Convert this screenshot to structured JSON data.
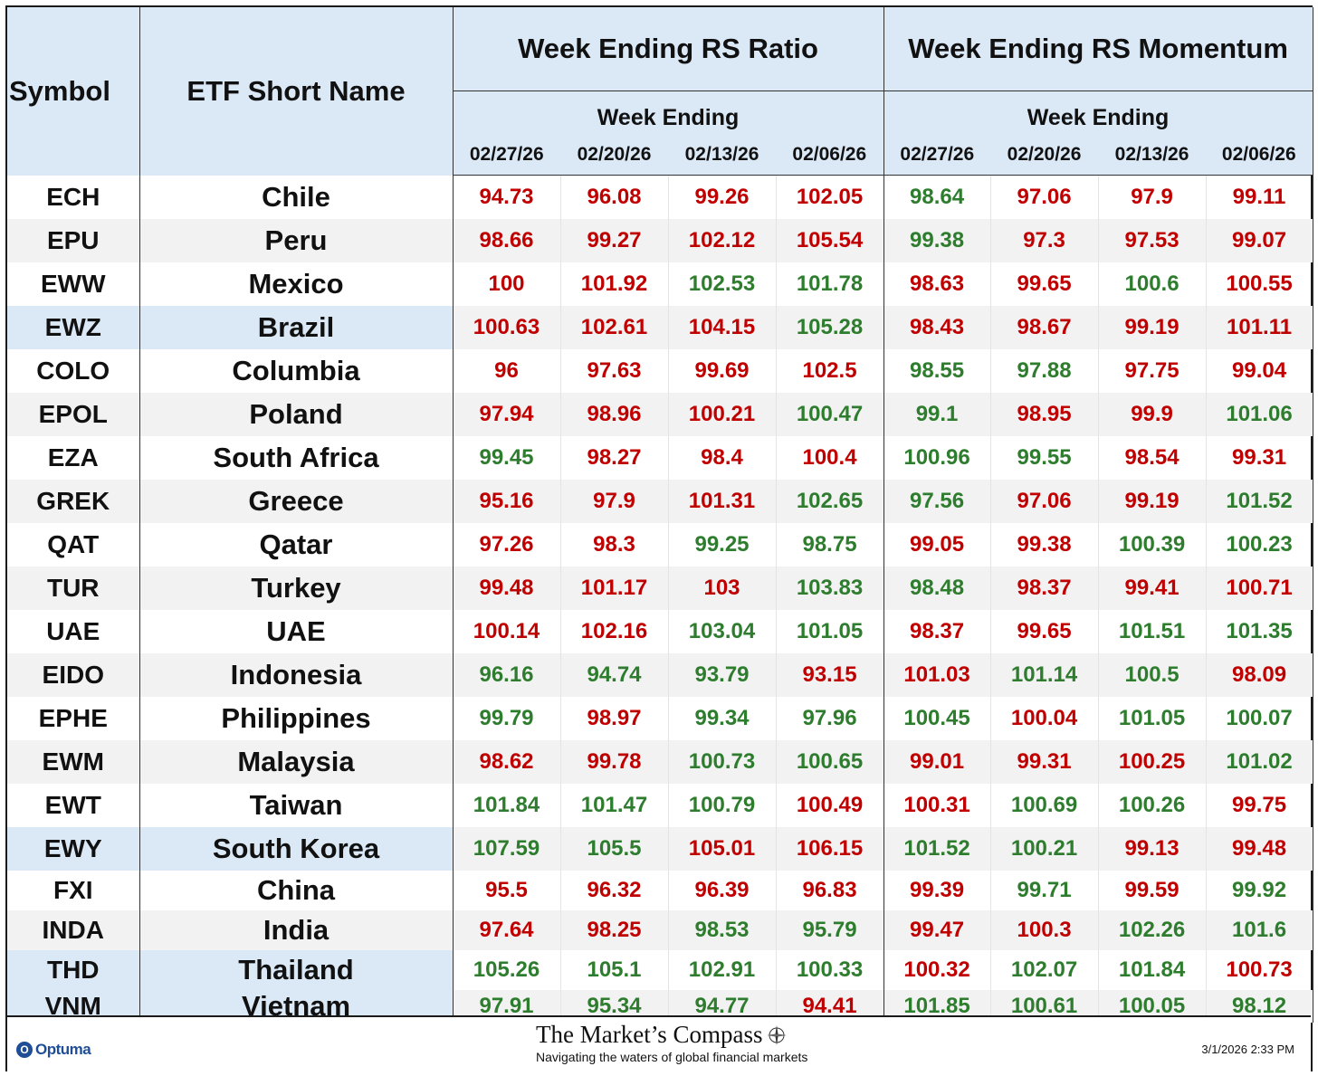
{
  "header": {
    "symbol": "Symbol",
    "etf_name": "ETF Short Name",
    "ratio_group": "Week Ending RS Ratio",
    "momentum_group": "Week Ending RS Momentum",
    "week_ending": "Week Ending",
    "dates": [
      "02/27/26",
      "02/20/26",
      "02/13/26",
      "02/06/26"
    ]
  },
  "colors": {
    "up": "#2e7d2e",
    "down": "#c00000",
    "header_bg": "#dbe9f7",
    "alt_row": "#f2f2f2"
  },
  "rows": [
    {
      "symbol": "ECH",
      "name": "Chile",
      "hl": false,
      "ratio": [
        "94.73",
        "96.08",
        "99.26",
        "102.05"
      ],
      "ratio_dir": [
        "dn",
        "dn",
        "dn",
        "dn"
      ],
      "mom": [
        "98.64",
        "97.06",
        "97.9",
        "99.11"
      ],
      "mom_dir": [
        "up",
        "dn",
        "dn",
        "dn"
      ]
    },
    {
      "symbol": "EPU",
      "name": "Peru",
      "hl": false,
      "ratio": [
        "98.66",
        "99.27",
        "102.12",
        "105.54"
      ],
      "ratio_dir": [
        "dn",
        "dn",
        "dn",
        "dn"
      ],
      "mom": [
        "99.38",
        "97.3",
        "97.53",
        "99.07"
      ],
      "mom_dir": [
        "up",
        "dn",
        "dn",
        "dn"
      ]
    },
    {
      "symbol": "EWW",
      "name": "Mexico",
      "hl": false,
      "ratio": [
        "100",
        "101.92",
        "102.53",
        "101.78"
      ],
      "ratio_dir": [
        "dn",
        "dn",
        "up",
        "up"
      ],
      "mom": [
        "98.63",
        "99.65",
        "100.6",
        "100.55"
      ],
      "mom_dir": [
        "dn",
        "dn",
        "up",
        "dn"
      ]
    },
    {
      "symbol": "EWZ",
      "name": "Brazil",
      "hl": true,
      "ratio": [
        "100.63",
        "102.61",
        "104.15",
        "105.28"
      ],
      "ratio_dir": [
        "dn",
        "dn",
        "dn",
        "up"
      ],
      "mom": [
        "98.43",
        "98.67",
        "99.19",
        "101.11"
      ],
      "mom_dir": [
        "dn",
        "dn",
        "dn",
        "dn"
      ]
    },
    {
      "symbol": "COLO",
      "name": "Columbia",
      "hl": false,
      "ratio": [
        "96",
        "97.63",
        "99.69",
        "102.5"
      ],
      "ratio_dir": [
        "dn",
        "dn",
        "dn",
        "dn"
      ],
      "mom": [
        "98.55",
        "97.88",
        "97.75",
        "99.04"
      ],
      "mom_dir": [
        "up",
        "up",
        "dn",
        "dn"
      ]
    },
    {
      "symbol": "EPOL",
      "name": "Poland",
      "hl": false,
      "ratio": [
        "97.94",
        "98.96",
        "100.21",
        "100.47"
      ],
      "ratio_dir": [
        "dn",
        "dn",
        "dn",
        "up"
      ],
      "mom": [
        "99.1",
        "98.95",
        "99.9",
        "101.06"
      ],
      "mom_dir": [
        "up",
        "dn",
        "dn",
        "up"
      ]
    },
    {
      "symbol": "EZA",
      "name": "South Africa",
      "hl": false,
      "ratio": [
        "99.45",
        "98.27",
        "98.4",
        "100.4"
      ],
      "ratio_dir": [
        "up",
        "dn",
        "dn",
        "dn"
      ],
      "mom": [
        "100.96",
        "99.55",
        "98.54",
        "99.31"
      ],
      "mom_dir": [
        "up",
        "up",
        "dn",
        "dn"
      ]
    },
    {
      "symbol": "GREK",
      "name": "Greece",
      "hl": false,
      "ratio": [
        "95.16",
        "97.9",
        "101.31",
        "102.65"
      ],
      "ratio_dir": [
        "dn",
        "dn",
        "dn",
        "up"
      ],
      "mom": [
        "97.56",
        "97.06",
        "99.19",
        "101.52"
      ],
      "mom_dir": [
        "up",
        "dn",
        "dn",
        "up"
      ]
    },
    {
      "symbol": "QAT",
      "name": "Qatar",
      "hl": false,
      "ratio": [
        "97.26",
        "98.3",
        "99.25",
        "98.75"
      ],
      "ratio_dir": [
        "dn",
        "dn",
        "up",
        "up"
      ],
      "mom": [
        "99.05",
        "99.38",
        "100.39",
        "100.23"
      ],
      "mom_dir": [
        "dn",
        "dn",
        "up",
        "up"
      ]
    },
    {
      "symbol": "TUR",
      "name": "Turkey",
      "hl": false,
      "ratio": [
        "99.48",
        "101.17",
        "103",
        "103.83"
      ],
      "ratio_dir": [
        "dn",
        "dn",
        "dn",
        "up"
      ],
      "mom": [
        "98.48",
        "98.37",
        "99.41",
        "100.71"
      ],
      "mom_dir": [
        "up",
        "dn",
        "dn",
        "dn"
      ]
    },
    {
      "symbol": "UAE",
      "name": "UAE",
      "hl": false,
      "ratio": [
        "100.14",
        "102.16",
        "103.04",
        "101.05"
      ],
      "ratio_dir": [
        "dn",
        "dn",
        "up",
        "up"
      ],
      "mom": [
        "98.37",
        "99.65",
        "101.51",
        "101.35"
      ],
      "mom_dir": [
        "dn",
        "dn",
        "up",
        "up"
      ]
    },
    {
      "symbol": "EIDO",
      "name": "Indonesia",
      "hl": false,
      "ratio": [
        "96.16",
        "94.74",
        "93.79",
        "93.15"
      ],
      "ratio_dir": [
        "up",
        "up",
        "up",
        "dn"
      ],
      "mom": [
        "101.03",
        "101.14",
        "100.5",
        "98.09"
      ],
      "mom_dir": [
        "dn",
        "up",
        "up",
        "dn"
      ]
    },
    {
      "symbol": "EPHE",
      "name": "Philippines",
      "hl": false,
      "ratio": [
        "99.79",
        "98.97",
        "99.34",
        "97.96"
      ],
      "ratio_dir": [
        "up",
        "dn",
        "up",
        "up"
      ],
      "mom": [
        "100.45",
        "100.04",
        "101.05",
        "100.07"
      ],
      "mom_dir": [
        "up",
        "dn",
        "up",
        "up"
      ]
    },
    {
      "symbol": "EWM",
      "name": "Malaysia",
      "hl": false,
      "ratio": [
        "98.62",
        "99.78",
        "100.73",
        "100.65"
      ],
      "ratio_dir": [
        "dn",
        "dn",
        "up",
        "up"
      ],
      "mom": [
        "99.01",
        "99.31",
        "100.25",
        "101.02"
      ],
      "mom_dir": [
        "dn",
        "dn",
        "dn",
        "up"
      ]
    },
    {
      "symbol": "EWT",
      "name": "Taiwan",
      "hl": false,
      "ratio": [
        "101.84",
        "101.47",
        "100.79",
        "100.49"
      ],
      "ratio_dir": [
        "up",
        "up",
        "up",
        "dn"
      ],
      "mom": [
        "100.31",
        "100.69",
        "100.26",
        "99.75"
      ],
      "mom_dir": [
        "dn",
        "up",
        "up",
        "dn"
      ]
    },
    {
      "symbol": "EWY",
      "name": "South Korea",
      "hl": true,
      "ratio": [
        "107.59",
        "105.5",
        "105.01",
        "106.15"
      ],
      "ratio_dir": [
        "up",
        "up",
        "dn",
        "dn"
      ],
      "mom": [
        "101.52",
        "100.21",
        "99.13",
        "99.48"
      ],
      "mom_dir": [
        "up",
        "up",
        "dn",
        "dn"
      ]
    },
    {
      "symbol": "FXI",
      "name": "China",
      "hl": false,
      "ratio": [
        "95.5",
        "96.32",
        "96.39",
        "96.83"
      ],
      "ratio_dir": [
        "dn",
        "dn",
        "dn",
        "dn"
      ],
      "mom": [
        "99.39",
        "99.71",
        "99.59",
        "99.92"
      ],
      "mom_dir": [
        "dn",
        "up",
        "dn",
        "up"
      ]
    },
    {
      "symbol": "INDA",
      "name": "India",
      "hl": false,
      "ratio": [
        "97.64",
        "98.25",
        "98.53",
        "95.79"
      ],
      "ratio_dir": [
        "dn",
        "dn",
        "up",
        "up"
      ],
      "mom": [
        "99.47",
        "100.3",
        "102.26",
        "101.6"
      ],
      "mom_dir": [
        "dn",
        "dn",
        "up",
        "up"
      ]
    },
    {
      "symbol": "THD",
      "name": "Thailand",
      "hl": true,
      "ratio": [
        "105.26",
        "105.1",
        "102.91",
        "100.33"
      ],
      "ratio_dir": [
        "up",
        "up",
        "up",
        "up"
      ],
      "mom": [
        "100.32",
        "102.07",
        "101.84",
        "100.73"
      ],
      "mom_dir": [
        "dn",
        "up",
        "up",
        "dn"
      ]
    },
    {
      "symbol": "VNM",
      "name": "Vietnam",
      "hl": true,
      "ratio": [
        "97.91",
        "95.34",
        "94.77",
        "94.41"
      ],
      "ratio_dir": [
        "up",
        "up",
        "up",
        "dn"
      ],
      "mom": [
        "101.85",
        "100.61",
        "100.05",
        "98.12"
      ],
      "mom_dir": [
        "up",
        "up",
        "up",
        "up"
      ]
    }
  ],
  "footer": {
    "optuma_label": "Optuma",
    "optuma_icon": "O",
    "brand_title": "The Market’s Compass",
    "brand_subtitle": "Navigating the waters of global financial markets",
    "timestamp": "3/1/2026 2:33 PM",
    "compass_icon": "compass-rose-icon"
  }
}
